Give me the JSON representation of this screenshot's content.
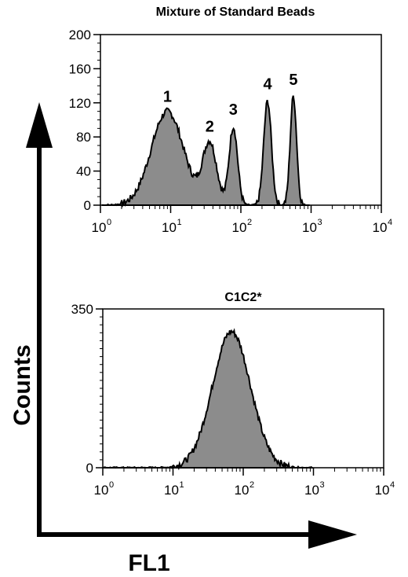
{
  "figure": {
    "y_arrow_label": "Counts",
    "x_arrow_label": "FL1",
    "fill_color": "#8c8c8c",
    "line_color": "#000000"
  },
  "chart_data": [
    {
      "type": "area",
      "title": "Mixture of Standard Beads",
      "x_scale": "log",
      "xlim": [
        1,
        10000
      ],
      "ylim": [
        0,
        200
      ],
      "x_ticks": [
        {
          "base": "10",
          "exp": "0",
          "value": 1
        },
        {
          "base": "10",
          "exp": "1",
          "value": 10
        },
        {
          "base": "10",
          "exp": "2",
          "value": 100
        },
        {
          "base": "10",
          "exp": "3",
          "value": 1000
        },
        {
          "base": "10",
          "exp": "4",
          "value": 10000
        }
      ],
      "y_ticks": [
        "0",
        "40",
        "80",
        "120",
        "160",
        "200"
      ],
      "y_tick_values": [
        0,
        40,
        80,
        120,
        160,
        200
      ],
      "peak_labels": [
        {
          "text": "1",
          "x": 9,
          "y": 110
        },
        {
          "text": "2",
          "x": 36,
          "y": 75
        },
        {
          "text": "3",
          "x": 78,
          "y": 95
        },
        {
          "text": "4",
          "x": 240,
          "y": 125
        },
        {
          "text": "5",
          "x": 560,
          "y": 130
        }
      ],
      "peaks": [
        {
          "center": 9,
          "height": 110,
          "width_log": 0.23
        },
        {
          "center": 36,
          "height": 72,
          "width_log": 0.1
        },
        {
          "center": 78,
          "height": 92,
          "width_log": 0.06
        },
        {
          "center": 240,
          "height": 122,
          "width_log": 0.055
        },
        {
          "center": 560,
          "height": 128,
          "width_log": 0.045
        }
      ]
    },
    {
      "type": "area",
      "title": "C1C2*",
      "x_scale": "log",
      "xlim": [
        1,
        10000
      ],
      "ylim": [
        0,
        350
      ],
      "x_ticks": [
        {
          "base": "10",
          "exp": "0",
          "value": 1
        },
        {
          "base": "10",
          "exp": "1",
          "value": 10
        },
        {
          "base": "10",
          "exp": "2",
          "value": 100
        },
        {
          "base": "10",
          "exp": "3",
          "value": 1000
        },
        {
          "base": "10",
          "exp": "4",
          "value": 10000
        }
      ],
      "y_ticks": [
        "0",
        "350"
      ],
      "y_tick_values": [
        0,
        350
      ],
      "peak_labels": [],
      "peaks": [
        {
          "center": 68,
          "height": 300,
          "width_log": 0.27
        }
      ]
    }
  ]
}
